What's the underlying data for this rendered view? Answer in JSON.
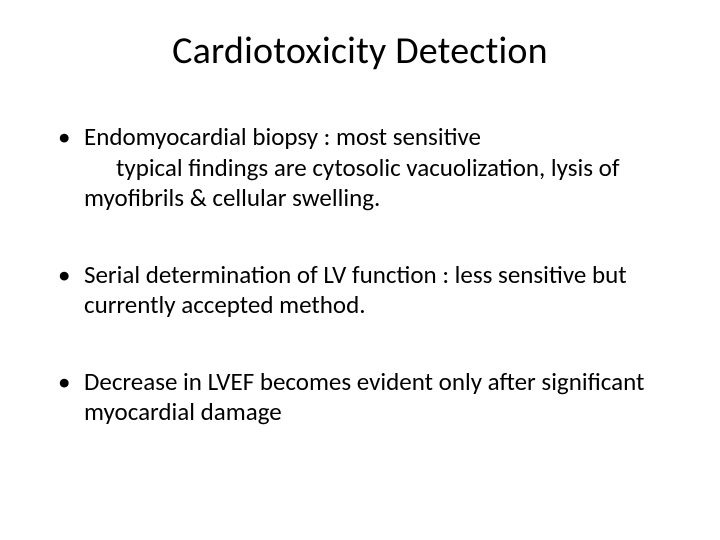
{
  "slide": {
    "title": "Cardiotoxicity Detection",
    "bullets": [
      {
        "lead": "Endomyocardial biopsy : most sensitive",
        "cont": "typical findings are cytosolic vacuolization, lysis of",
        "wrap": "myofibrils & cellular swelling."
      },
      {
        "lead": "Serial determination of LV function : less sensitive but currently accepted method.",
        "cont": "",
        "wrap": ""
      },
      {
        "lead": "Decrease in LVEF becomes evident only after significant myocardial damage",
        "cont": "",
        "wrap": ""
      }
    ]
  },
  "style": {
    "background_color": "#ffffff",
    "text_color": "#000000",
    "title_fontsize": 38,
    "body_fontsize": 25,
    "font_family": "Calibri"
  }
}
